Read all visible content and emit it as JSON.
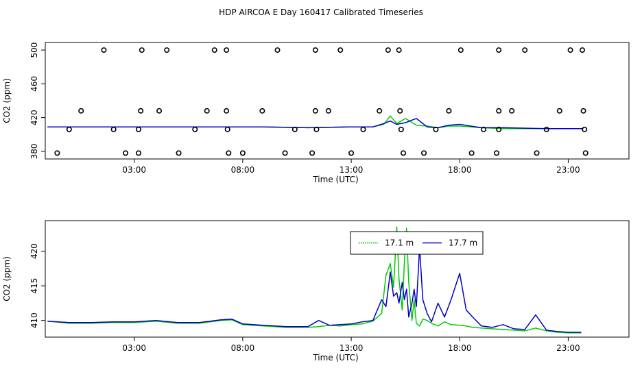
{
  "title": "HDP AIRCOA E  Day 160417  Calibrated Timeseries",
  "chart_data": [
    {
      "type": "scatter",
      "xlabel": "Time (UTC)",
      "ylabel": "CO2 (ppm)",
      "xlim": [
        -1.1,
        25.8
      ],
      "ylim": [
        371,
        509
      ],
      "x_ticks": [
        3,
        8,
        13,
        18,
        23
      ],
      "x_tick_labels": [
        "03:00",
        "08:00",
        "13:00",
        "18:00",
        "23:00"
      ],
      "y_ticks": [
        380,
        420,
        460,
        500
      ],
      "y_tick_labels": [
        "380",
        "420",
        "460",
        "500"
      ],
      "grid": false,
      "colors": {
        "17.1 m": "#00cc00",
        "17.7 m": "#0000cc",
        "points": "#000000"
      },
      "points": [
        {
          "x": 1.6,
          "y": 500
        },
        {
          "x": 3.35,
          "y": 500
        },
        {
          "x": 4.5,
          "y": 500
        },
        {
          "x": 6.7,
          "y": 500
        },
        {
          "x": 7.25,
          "y": 500
        },
        {
          "x": 9.6,
          "y": 500
        },
        {
          "x": 11.35,
          "y": 500
        },
        {
          "x": 12.5,
          "y": 500
        },
        {
          "x": 14.7,
          "y": 500
        },
        {
          "x": 15.2,
          "y": 500
        },
        {
          "x": 18.05,
          "y": 500
        },
        {
          "x": 19.8,
          "y": 500
        },
        {
          "x": 21.0,
          "y": 500
        },
        {
          "x": 23.1,
          "y": 500
        },
        {
          "x": 23.65,
          "y": 500
        },
        {
          "x": 0.55,
          "y": 428
        },
        {
          "x": 3.3,
          "y": 428
        },
        {
          "x": 4.15,
          "y": 428
        },
        {
          "x": 6.35,
          "y": 428
        },
        {
          "x": 7.25,
          "y": 428
        },
        {
          "x": 8.9,
          "y": 428
        },
        {
          "x": 11.35,
          "y": 428
        },
        {
          "x": 11.95,
          "y": 428
        },
        {
          "x": 14.3,
          "y": 428
        },
        {
          "x": 15.25,
          "y": 428
        },
        {
          "x": 17.5,
          "y": 428
        },
        {
          "x": 19.8,
          "y": 428
        },
        {
          "x": 20.4,
          "y": 428
        },
        {
          "x": 22.6,
          "y": 428
        },
        {
          "x": 23.7,
          "y": 428
        },
        {
          "x": 0.0,
          "y": 406
        },
        {
          "x": 2.05,
          "y": 406
        },
        {
          "x": 3.2,
          "y": 406
        },
        {
          "x": 5.8,
          "y": 406
        },
        {
          "x": 7.3,
          "y": 406
        },
        {
          "x": 10.4,
          "y": 406
        },
        {
          "x": 11.4,
          "y": 406
        },
        {
          "x": 13.55,
          "y": 406
        },
        {
          "x": 15.3,
          "y": 406
        },
        {
          "x": 16.9,
          "y": 406
        },
        {
          "x": 19.1,
          "y": 406
        },
        {
          "x": 19.8,
          "y": 406
        },
        {
          "x": 22.0,
          "y": 406
        },
        {
          "x": 23.75,
          "y": 406
        },
        {
          "x": -0.55,
          "y": 378
        },
        {
          "x": 2.6,
          "y": 378
        },
        {
          "x": 3.2,
          "y": 378
        },
        {
          "x": 5.05,
          "y": 378
        },
        {
          "x": 7.35,
          "y": 378
        },
        {
          "x": 8.0,
          "y": 378
        },
        {
          "x": 9.95,
          "y": 378
        },
        {
          "x": 11.2,
          "y": 378
        },
        {
          "x": 13.0,
          "y": 378
        },
        {
          "x": 15.4,
          "y": 378
        },
        {
          "x": 16.35,
          "y": 378
        },
        {
          "x": 18.55,
          "y": 378
        },
        {
          "x": 19.7,
          "y": 378
        },
        {
          "x": 21.55,
          "y": 378
        },
        {
          "x": 23.8,
          "y": 378
        }
      ],
      "series": [
        {
          "name": "17.1 m",
          "x": [
            -1,
            1,
            3,
            5,
            7,
            9,
            11,
            13,
            14,
            14.5,
            14.8,
            15.1,
            15.5,
            16,
            16.5,
            17,
            17.5,
            18,
            19,
            20,
            22,
            23.7
          ],
          "y": [
            409,
            409,
            409,
            409,
            409,
            409,
            408,
            409,
            409,
            412,
            422,
            413,
            419,
            411,
            410,
            408,
            410,
            410,
            408,
            407,
            407,
            407
          ]
        },
        {
          "name": "17.7 m",
          "x": [
            -1,
            1,
            3,
            5,
            7,
            9,
            11,
            13,
            14,
            14.5,
            14.8,
            15.1,
            15.5,
            16,
            16.5,
            17,
            17.5,
            18,
            19,
            20,
            22,
            23.7
          ],
          "y": [
            409,
            409,
            409,
            409,
            409,
            409,
            408,
            409,
            409,
            413,
            416,
            412,
            414,
            419,
            409,
            408,
            411,
            412,
            408,
            408,
            407,
            407
          ]
        }
      ]
    },
    {
      "type": "line",
      "xlabel": "Time (UTC)",
      "ylabel": "CO2 (ppm)",
      "xlim": [
        -1.1,
        25.8
      ],
      "ylim": [
        407.6,
        424.4
      ],
      "x_ticks": [
        3,
        8,
        13,
        18,
        23
      ],
      "x_tick_labels": [
        "03:00",
        "08:00",
        "13:00",
        "18:00",
        "23:00"
      ],
      "y_ticks": [
        410,
        415,
        420
      ],
      "y_tick_labels": [
        "410",
        "415",
        "420"
      ],
      "grid": false,
      "legend": "top-right",
      "series": [
        {
          "name": "17.1 m",
          "color": "#00cc00",
          "x": [
            -1,
            0,
            1,
            2,
            3,
            4,
            5,
            6,
            7,
            7.5,
            8,
            9,
            10,
            11,
            11.5,
            12,
            12.5,
            13,
            13.5,
            14,
            14.4,
            14.6,
            14.8,
            14.95,
            15.1,
            15.2,
            15.35,
            15.45,
            15.55,
            15.65,
            15.8,
            15.9,
            16.0,
            16.15,
            16.3,
            16.5,
            16.7,
            17.0,
            17.3,
            17.6,
            18.0,
            18.3,
            18.6,
            19.0,
            19.5,
            20.0,
            20.5,
            21.0,
            21.5,
            22.0,
            22.5,
            23.0,
            23.6
          ],
          "y": [
            409.9,
            409.6,
            409.6,
            409.7,
            409.7,
            409.9,
            409.6,
            409.6,
            410.0,
            410.1,
            409.4,
            409.2,
            409.0,
            409.0,
            409.1,
            409.3,
            409.2,
            409.4,
            409.5,
            409.9,
            411.0,
            416.5,
            418.2,
            414.8,
            423.5,
            416.0,
            411.5,
            418.5,
            423.3,
            415.5,
            410.0,
            413.0,
            409.6,
            409.2,
            410.2,
            410.0,
            409.6,
            409.2,
            409.8,
            409.4,
            409.3,
            409.2,
            409.0,
            408.9,
            408.8,
            408.7,
            408.6,
            408.5,
            408.9,
            408.5,
            408.3,
            408.2,
            408.2
          ]
        },
        {
          "name": "17.7 m",
          "color": "#0000cc",
          "x": [
            -1,
            0,
            1,
            2,
            3,
            4,
            5,
            6,
            7,
            7.5,
            8,
            9,
            10,
            11,
            11.5,
            12,
            12.5,
            13,
            13.5,
            14,
            14.4,
            14.6,
            14.8,
            14.95,
            15.1,
            15.2,
            15.35,
            15.45,
            15.55,
            15.65,
            15.8,
            15.9,
            16.0,
            16.15,
            16.3,
            16.5,
            16.7,
            17.0,
            17.3,
            17.6,
            18.0,
            18.3,
            18.6,
            19.0,
            19.5,
            20.0,
            20.5,
            21.0,
            21.5,
            22.0,
            22.5,
            23.0,
            23.6
          ],
          "y": [
            409.9,
            409.7,
            409.7,
            409.8,
            409.8,
            410.0,
            409.7,
            409.7,
            410.1,
            410.2,
            409.5,
            409.3,
            409.1,
            409.1,
            410.0,
            409.3,
            409.4,
            409.5,
            409.8,
            410.0,
            413.0,
            412.0,
            417.0,
            413.5,
            414.0,
            412.5,
            415.5,
            413.0,
            414.5,
            410.5,
            412.5,
            414.5,
            412.0,
            420.5,
            413.0,
            411.0,
            409.8,
            412.5,
            410.5,
            413.0,
            416.8,
            411.5,
            410.5,
            409.2,
            409.0,
            409.4,
            408.8,
            408.7,
            410.8,
            408.6,
            408.4,
            408.3,
            408.3
          ]
        }
      ]
    }
  ]
}
